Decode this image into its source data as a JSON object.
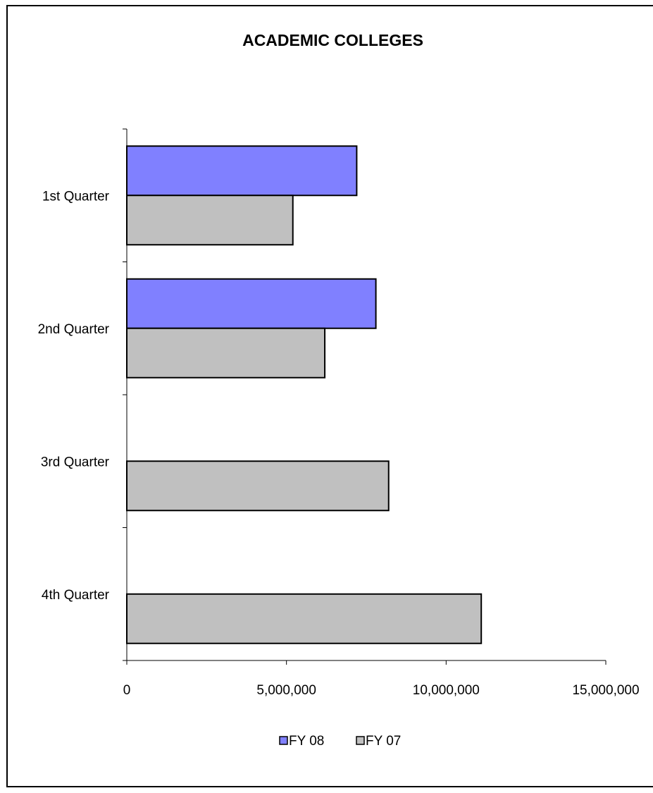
{
  "chart_data": {
    "type": "bar",
    "orientation": "horizontal",
    "title": "ACADEMIC COLLEGES",
    "categories": [
      "1st Quarter",
      "2nd Quarter",
      "3rd Quarter",
      "4th Quarter"
    ],
    "series": [
      {
        "name": "FY 08",
        "color": "#8080ff",
        "values": [
          7200000,
          7800000,
          null,
          null
        ]
      },
      {
        "name": "FY 07",
        "color": "#c0c0c0",
        "values": [
          5200000,
          6200000,
          8200000,
          11100000
        ]
      }
    ],
    "xlim": [
      0,
      15000000
    ],
    "x_ticks": [
      "0",
      "5,000,000",
      "10,000,000",
      "15,000,000"
    ],
    "x_tick_values": [
      0,
      5000000,
      10000000,
      15000000
    ],
    "grid": false,
    "legend_position": "bottom"
  }
}
